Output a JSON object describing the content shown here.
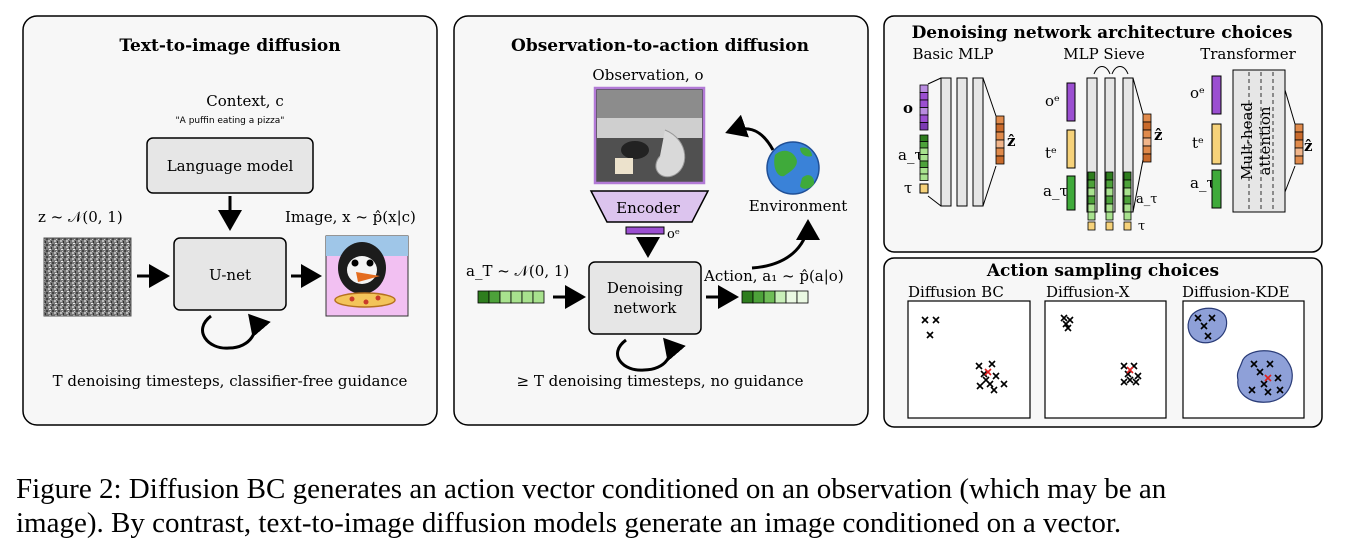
{
  "panel1": {
    "title": "Text-to-image diffusion",
    "context": "Context, c",
    "prompt": "\"A puffin eating a pizza\"",
    "language_model": "Language model",
    "noise_label": "z ~ 𝒩(0, 1)",
    "image_label": "Image, x ~ p̂(x|c)",
    "unet": "U-net",
    "footer": "T denoising timesteps, classifier-free guidance"
  },
  "panel2": {
    "title": "Observation-to-action diffusion",
    "observation": "Observation, o",
    "encoder": "Encoder",
    "oe": "oᵉ",
    "environment": "Environment",
    "noise_label": "a_T ~ 𝒩(0, 1)",
    "denoising_line1": "Denoising",
    "denoising_line2": "network",
    "action_label": "Action, a₁ ~ p̂(a|o)",
    "footer": "≥ T denoising timesteps, no guidance"
  },
  "panel3": {
    "title": "Denoising network architecture choices",
    "arch1": "Basic MLP",
    "arch2": "MLP Sieve",
    "arch3": "Transformer",
    "o": "o",
    "a_tau": "a_τ",
    "tau": "τ",
    "z_hat": "ẑ",
    "o_e": "oᵉ",
    "t_e": "tᵉ",
    "a_tau_e": "a_τᵉ",
    "attention_line1": "Mult-head",
    "attention_line2": "attention"
  },
  "panel4": {
    "title": "Action sampling choices",
    "opt1": "Diffusion BC",
    "opt2": "Diffusion-X",
    "opt3": "Diffusion-KDE"
  },
  "caption": {
    "line1": "Figure 2: Diffusion BC generates an action vector conditioned on an observation (which may be an",
    "line2": "image). By contrast, text-to-image diffusion models generate an image conditioned on a vector."
  },
  "colors": {
    "panel_bg": "#f7f7f7",
    "box_fill": "#e6e6e6",
    "green_dark": "#2e7d1e",
    "green_light": "#a8e28e",
    "purple": "#9b4fd1",
    "orange": "#e08a4b",
    "yellow": "#f6d27a",
    "kde_blue": "#8ea0d8",
    "red_marker": "#e02020"
  }
}
